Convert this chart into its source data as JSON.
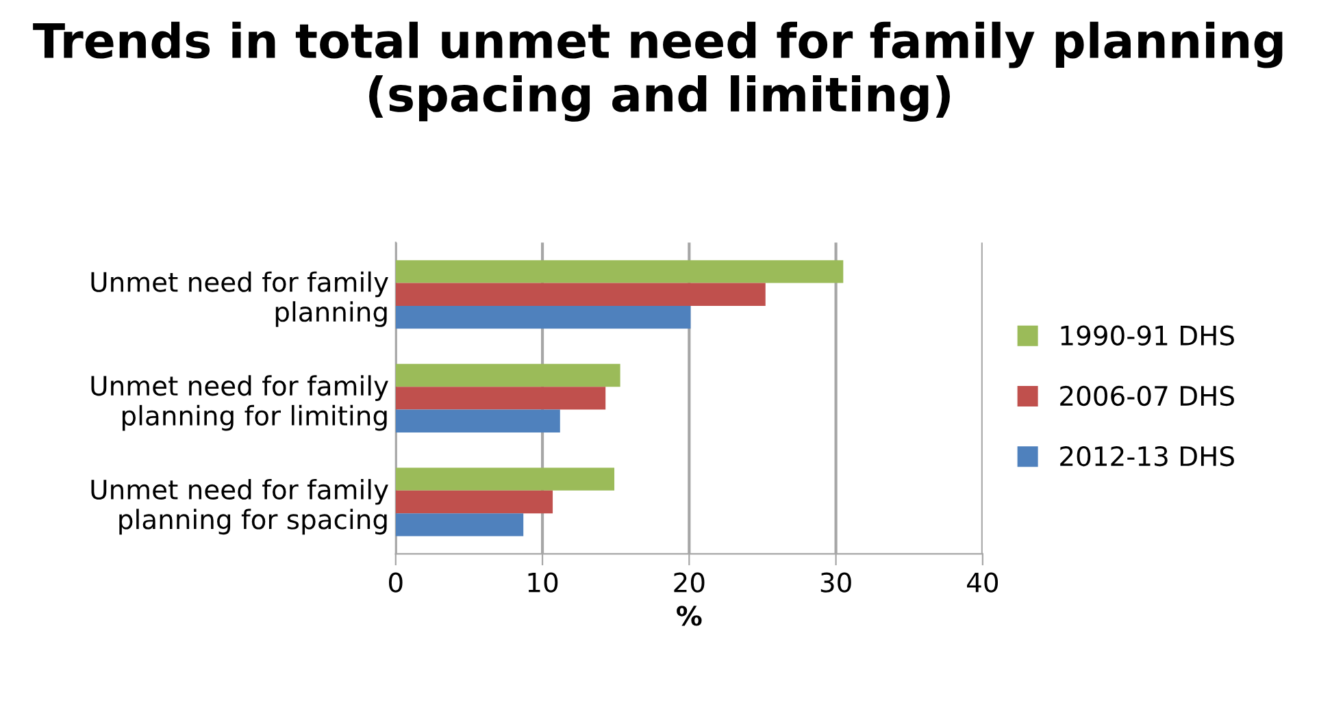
{
  "chart_data": {
    "type": "bar",
    "orientation": "horizontal",
    "title": "Trends in total unmet need for family planning (spacing and limiting)",
    "xlabel": "%",
    "categories": [
      "Unmet need for family planning",
      "Unmet need for family planning for limiting",
      "Unmet need for family planning for spacing"
    ],
    "series": [
      {
        "name": "1990-91 DHS",
        "color": "#9bbb59",
        "values": [
          30.5,
          15.3,
          14.9
        ]
      },
      {
        "name": "2006-07 DHS",
        "color": "#c0504d",
        "values": [
          25.2,
          14.3,
          10.7
        ]
      },
      {
        "name": "2012-13 DHS",
        "color": "#4f81bd",
        "values": [
          20.1,
          11.2,
          8.7
        ]
      }
    ],
    "xlim": [
      0,
      40
    ],
    "xticks": [
      0,
      10,
      20,
      30,
      40
    ],
    "grid": "x",
    "legend": "right"
  }
}
